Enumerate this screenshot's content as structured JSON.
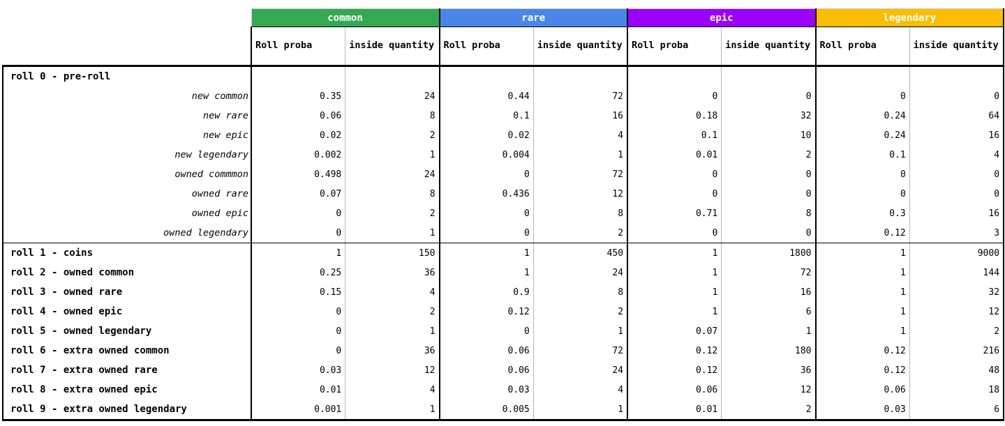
{
  "table": {
    "tiers": [
      {
        "name": "common",
        "color": "#34a853"
      },
      {
        "name": "rare",
        "color": "#4a86e8"
      },
      {
        "name": "epic",
        "color": "#9900ff"
      },
      {
        "name": "legendary",
        "color": "#fbbc04"
      }
    ],
    "column_headers": {
      "roll_proba": "Roll proba",
      "inside_quantity": "inside quantity"
    },
    "rows": [
      {
        "label": "roll 0 - pre-roll",
        "type": "section",
        "values": [
          "",
          "",
          "",
          "",
          "",
          "",
          "",
          ""
        ]
      },
      {
        "label": "new common",
        "type": "sub",
        "values": [
          "0.35",
          "24",
          "0.44",
          "72",
          "0",
          "0",
          "0",
          "0"
        ]
      },
      {
        "label": "new rare",
        "type": "sub",
        "values": [
          "0.06",
          "8",
          "0.1",
          "16",
          "0.18",
          "32",
          "0.24",
          "64"
        ]
      },
      {
        "label": "new epic",
        "type": "sub",
        "values": [
          "0.02",
          "2",
          "0.02",
          "4",
          "0.1",
          "10",
          "0.24",
          "16"
        ]
      },
      {
        "label": "new legendary",
        "type": "sub",
        "values": [
          "0.002",
          "1",
          "0.004",
          "1",
          "0.01",
          "2",
          "0.1",
          "4"
        ]
      },
      {
        "label": "owned commmon",
        "type": "sub",
        "values": [
          "0.498",
          "24",
          "0",
          "72",
          "0",
          "0",
          "0",
          "0"
        ]
      },
      {
        "label": "owned rare",
        "type": "sub",
        "values": [
          "0.07",
          "8",
          "0.436",
          "12",
          "0",
          "0",
          "0",
          "0"
        ]
      },
      {
        "label": "owned epic",
        "type": "sub",
        "values": [
          "0",
          "2",
          "0",
          "8",
          "0.71",
          "8",
          "0.3",
          "16"
        ]
      },
      {
        "label": "owned legendary",
        "type": "sub",
        "block_end": true,
        "values": [
          "0",
          "1",
          "0",
          "2",
          "0",
          "0",
          "0.12",
          "3"
        ]
      },
      {
        "label": "roll 1 - coins",
        "type": "section",
        "values": [
          "1",
          "150",
          "1",
          "450",
          "1",
          "1800",
          "1",
          "9000"
        ]
      },
      {
        "label": "roll 2 - owned common",
        "type": "section",
        "values": [
          "0.25",
          "36",
          "1",
          "24",
          "1",
          "72",
          "1",
          "144"
        ]
      },
      {
        "label": "roll 3 - owned rare",
        "type": "section",
        "values": [
          "0.15",
          "4",
          "0.9",
          "8",
          "1",
          "16",
          "1",
          "32"
        ]
      },
      {
        "label": "roll 4 - owned epic",
        "type": "section",
        "values": [
          "0",
          "2",
          "0.12",
          "2",
          "1",
          "6",
          "1",
          "12"
        ]
      },
      {
        "label": "roll 5 - owned legendary",
        "type": "section",
        "values": [
          "0",
          "1",
          "0",
          "1",
          "0.07",
          "1",
          "1",
          "2"
        ]
      },
      {
        "label": "roll 6 - extra owned common",
        "type": "section",
        "values": [
          "0",
          "36",
          "0.06",
          "72",
          "0.12",
          "180",
          "0.12",
          "216"
        ]
      },
      {
        "label": "roll 7 - extra owned rare",
        "type": "section",
        "values": [
          "0.03",
          "12",
          "0.06",
          "24",
          "0.12",
          "36",
          "0.12",
          "48"
        ]
      },
      {
        "label": "roll 8 - extra owned epic",
        "type": "section",
        "values": [
          "0.01",
          "4",
          "0.03",
          "4",
          "0.06",
          "12",
          "0.06",
          "18"
        ]
      },
      {
        "label": "roll 9 - extra owned legendary",
        "type": "section",
        "values": [
          "0.001",
          "1",
          "0.005",
          "1",
          "0.01",
          "2",
          "0.03",
          "6"
        ]
      }
    ]
  }
}
